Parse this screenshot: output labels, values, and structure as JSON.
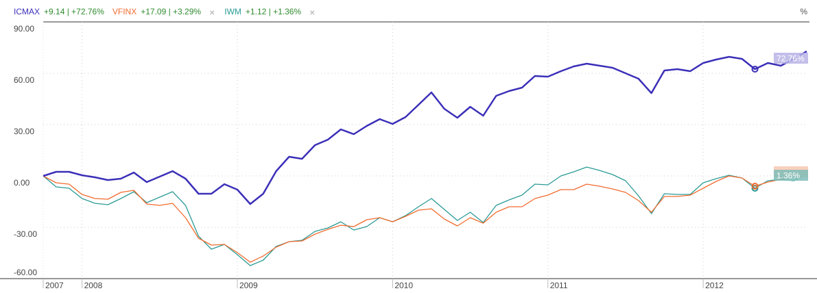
{
  "chart_data": {
    "type": "line",
    "unit_label": "%",
    "start_month": "2007-10",
    "x_tick_labels": [
      "2007",
      "2008",
      "2009",
      "2010",
      "2011",
      "2012"
    ],
    "x_tick_index": [
      0,
      3,
      15,
      27,
      39,
      51
    ],
    "y_ticks": [
      90,
      60,
      30,
      0,
      -30,
      -60
    ],
    "y_tick_labels": [
      "90.00",
      "60.00",
      "30.00",
      "0.00",
      "-30.00",
      "-60.00"
    ],
    "ylim": [
      -60,
      90
    ],
    "grid": true,
    "highlight_index": 55,
    "series": [
      {
        "name": "ICMAX",
        "change": "+9.14",
        "pct": "+72.76%",
        "end_label": "72.76%",
        "color": "#3b2fb8",
        "label_bg": "#b9b4e6",
        "removable": false,
        "values": [
          0,
          2.4,
          2.4,
          0.4,
          -0.8,
          -2.4,
          -1.6,
          2,
          -3.6,
          -0.4,
          2.8,
          -1.6,
          -10.4,
          -10.4,
          -4.8,
          -8,
          -16.4,
          -10.4,
          2.8,
          11.2,
          10,
          18,
          21.2,
          27.2,
          24.4,
          29.2,
          33.2,
          30.4,
          34.4,
          41.6,
          48.8,
          39.2,
          34,
          40.4,
          35.2,
          46.8,
          49.6,
          51.6,
          58.4,
          58,
          61.2,
          64,
          65.6,
          64.4,
          63.2,
          60,
          56.8,
          48.4,
          61.6,
          62.4,
          61.2,
          66,
          68,
          69.6,
          68.4,
          62.4,
          66,
          64.4,
          68.4,
          72.8
        ]
      },
      {
        "name": "VFINX",
        "change": "+17.09",
        "pct": "+3.29%",
        "end_label": "",
        "color": "#f26b2e",
        "label_bg": "#f7c8b2",
        "removable": true,
        "values": [
          0,
          -4,
          -4.8,
          -10.8,
          -13.2,
          -13.6,
          -9.6,
          -8.4,
          -16.4,
          -17.2,
          -16,
          -24.4,
          -36.4,
          -40.4,
          -40,
          -44.8,
          -50.4,
          -46.8,
          -41.6,
          -38.4,
          -38,
          -34,
          -31.2,
          -28.8,
          -29.6,
          -25.6,
          -24.4,
          -26.8,
          -23.6,
          -20,
          -19.2,
          -25.2,
          -29.2,
          -24.4,
          -27.6,
          -21.2,
          -18,
          -18,
          -13.2,
          -11.2,
          -8,
          -8,
          -4.8,
          -6,
          -7.6,
          -9.6,
          -14.4,
          -21.2,
          -12,
          -12,
          -11.2,
          -7.2,
          -3.2,
          0,
          -1.2,
          -6,
          -3.6,
          -2,
          0.8,
          3.2
        ]
      },
      {
        "name": "IWM",
        "change": "+1.12",
        "pct": "+1.36%",
        "end_label": "1.36%",
        "color": "#2a9a96",
        "label_bg": "#7fbdb9",
        "removable": true,
        "values": [
          0,
          -6.4,
          -7.2,
          -13.2,
          -16,
          -16.8,
          -13.2,
          -9.2,
          -15.6,
          -12.4,
          -9.2,
          -17.2,
          -35.2,
          -42.8,
          -40,
          -46,
          -52.4,
          -49.2,
          -41.2,
          -38.4,
          -37.6,
          -32.4,
          -30.4,
          -26.8,
          -31.6,
          -29.6,
          -24.4,
          -26.8,
          -23.2,
          -18,
          -13.2,
          -19.6,
          -26,
          -21.2,
          -27.2,
          -17.2,
          -14,
          -11.2,
          -4.8,
          -5.2,
          0,
          2.4,
          5.2,
          3.2,
          0.8,
          -2.8,
          -11.6,
          -22,
          -10.4,
          -10.8,
          -10.8,
          -4,
          -1.6,
          0.4,
          -1.2,
          -7.2,
          -2.8,
          -2,
          -2.8,
          1.2
        ]
      }
    ]
  },
  "legend": {
    "separator": "|",
    "remove_icon": "×",
    "change_color": "#2e8b2e",
    "remove_color": "#aaaaaa"
  }
}
